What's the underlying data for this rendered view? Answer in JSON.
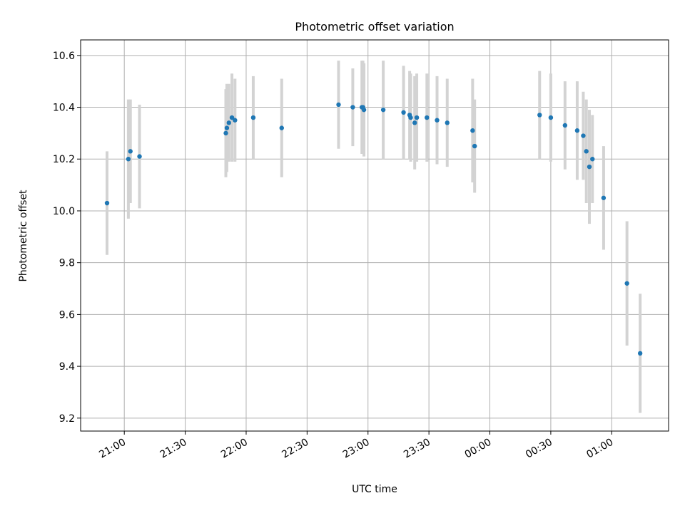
{
  "chart_data": {
    "type": "scatter",
    "title": "Photometric offset variation",
    "xlabel": "UTC time",
    "ylabel": "Photometric offset",
    "x_ticks": [
      {
        "t": 0,
        "label": "21:00"
      },
      {
        "t": 30,
        "label": "21:30"
      },
      {
        "t": 60,
        "label": "22:00"
      },
      {
        "t": 90,
        "label": "22:30"
      },
      {
        "t": 120,
        "label": "23:00"
      },
      {
        "t": 150,
        "label": "23:30"
      },
      {
        "t": 180,
        "label": "00:00"
      },
      {
        "t": 210,
        "label": "00:30"
      },
      {
        "t": 240,
        "label": "01:00"
      }
    ],
    "xlim_minutes_after_2100": [
      -21.5,
      268
    ],
    "y_ticks": [
      "9.2",
      "9.4",
      "9.6",
      "9.8",
      "10.0",
      "10.2",
      "10.4",
      "10.6"
    ],
    "ylim": [
      9.15,
      10.66
    ],
    "grid": true,
    "colors": {
      "point": "#1f77b4",
      "errorbar": "#d3d3d3",
      "grid": "#b0b0b0"
    },
    "series": [
      {
        "points": [
          {
            "t": -8.5,
            "y": 10.03,
            "err": 0.2
          },
          {
            "t": 2,
            "y": 10.2,
            "err": 0.23
          },
          {
            "t": 3,
            "y": 10.23,
            "err": 0.2
          },
          {
            "t": 7.5,
            "y": 10.21,
            "err": 0.2
          },
          {
            "t": 50,
            "y": 10.3,
            "err": 0.17
          },
          {
            "t": 50.5,
            "y": 10.32,
            "err": 0.17
          },
          {
            "t": 51.5,
            "y": 10.34,
            "err": 0.15
          },
          {
            "t": 53,
            "y": 10.36,
            "err": 0.17
          },
          {
            "t": 54.5,
            "y": 10.35,
            "err": 0.16
          },
          {
            "t": 63.5,
            "y": 10.36,
            "err": 0.16
          },
          {
            "t": 77.5,
            "y": 10.32,
            "err": 0.19
          },
          {
            "t": 105.5,
            "y": 10.41,
            "err": 0.17
          },
          {
            "t": 112.5,
            "y": 10.4,
            "err": 0.15
          },
          {
            "t": 117,
            "y": 10.4,
            "err": 0.18
          },
          {
            "t": 117.5,
            "y": 10.4,
            "err": 0.18
          },
          {
            "t": 118,
            "y": 10.39,
            "err": 0.18
          },
          {
            "t": 127.5,
            "y": 10.39,
            "err": 0.19
          },
          {
            "t": 137.5,
            "y": 10.38,
            "err": 0.18
          },
          {
            "t": 140.5,
            "y": 10.37,
            "err": 0.17
          },
          {
            "t": 141,
            "y": 10.36,
            "err": 0.17
          },
          {
            "t": 143,
            "y": 10.34,
            "err": 0.18
          },
          {
            "t": 144,
            "y": 10.36,
            "err": 0.17
          },
          {
            "t": 149,
            "y": 10.36,
            "err": 0.17
          },
          {
            "t": 154,
            "y": 10.35,
            "err": 0.17
          },
          {
            "t": 159,
            "y": 10.34,
            "err": 0.17
          },
          {
            "t": 171.5,
            "y": 10.31,
            "err": 0.2
          },
          {
            "t": 172.5,
            "y": 10.25,
            "err": 0.18
          },
          {
            "t": 204.5,
            "y": 10.37,
            "err": 0.17
          },
          {
            "t": 210,
            "y": 10.36,
            "err": 0.17
          },
          {
            "t": 217,
            "y": 10.33,
            "err": 0.17
          },
          {
            "t": 223,
            "y": 10.31,
            "err": 0.19
          },
          {
            "t": 226,
            "y": 10.29,
            "err": 0.17
          },
          {
            "t": 227.5,
            "y": 10.23,
            "err": 0.2
          },
          {
            "t": 229,
            "y": 10.17,
            "err": 0.22
          },
          {
            "t": 230.5,
            "y": 10.2,
            "err": 0.17
          },
          {
            "t": 236,
            "y": 10.05,
            "err": 0.2
          },
          {
            "t": 247.5,
            "y": 9.72,
            "err": 0.24
          },
          {
            "t": 254,
            "y": 9.45,
            "err": 0.23
          }
        ]
      }
    ]
  }
}
